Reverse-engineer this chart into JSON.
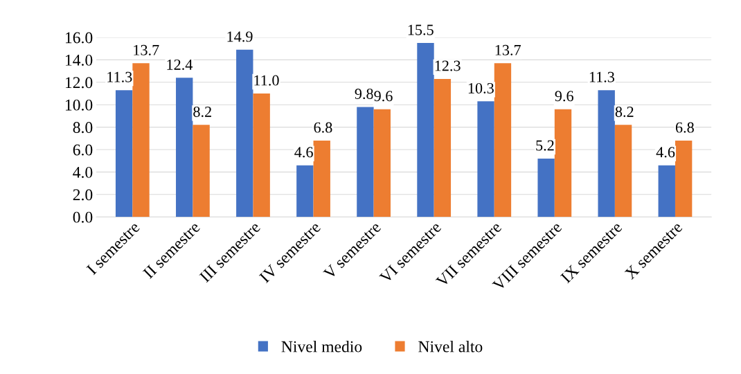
{
  "chart_data": {
    "type": "bar",
    "categories": [
      "I semestre",
      "II semestre",
      "III semestre",
      "IV semestre",
      "V semestre",
      "VI semestre",
      "VII semestre",
      "VIII semestre",
      "IX semestre",
      "X semestre"
    ],
    "series": [
      {
        "name": "Nivel medio",
        "color": "#4472c4",
        "values": [
          11.3,
          12.4,
          14.9,
          4.6,
          9.8,
          15.5,
          10.3,
          5.2,
          11.3,
          4.6
        ],
        "value_labels": [
          "11.3",
          "12.4",
          "14.9",
          "4.6",
          "9.8",
          "15.5",
          "10.3",
          "5.2",
          "11.3",
          "4.6"
        ]
      },
      {
        "name": "Nivel alto",
        "color": "#ed7d31",
        "values": [
          13.7,
          8.2,
          11.0,
          6.8,
          9.6,
          12.3,
          13.7,
          9.6,
          8.2,
          6.8
        ],
        "value_labels": [
          "13.7",
          "8.2",
          "11.0",
          "6.8",
          "9.6",
          "12.3",
          "13.7",
          "9.6",
          "8.2",
          "6.8"
        ]
      }
    ],
    "ylim": [
      0,
      16
    ],
    "yticks": [
      {
        "value": 0,
        "label": "0.0"
      },
      {
        "value": 2,
        "label": "2.0"
      },
      {
        "value": 4,
        "label": "4.0"
      },
      {
        "value": 6,
        "label": "6.0"
      },
      {
        "value": 8,
        "label": "8.0"
      },
      {
        "value": 10,
        "label": "10.0"
      },
      {
        "value": 12,
        "label": "12.0"
      },
      {
        "value": 14,
        "label": "14.0"
      },
      {
        "value": 16,
        "label": "16.0"
      }
    ],
    "grid": "y",
    "legend": "bottom"
  }
}
